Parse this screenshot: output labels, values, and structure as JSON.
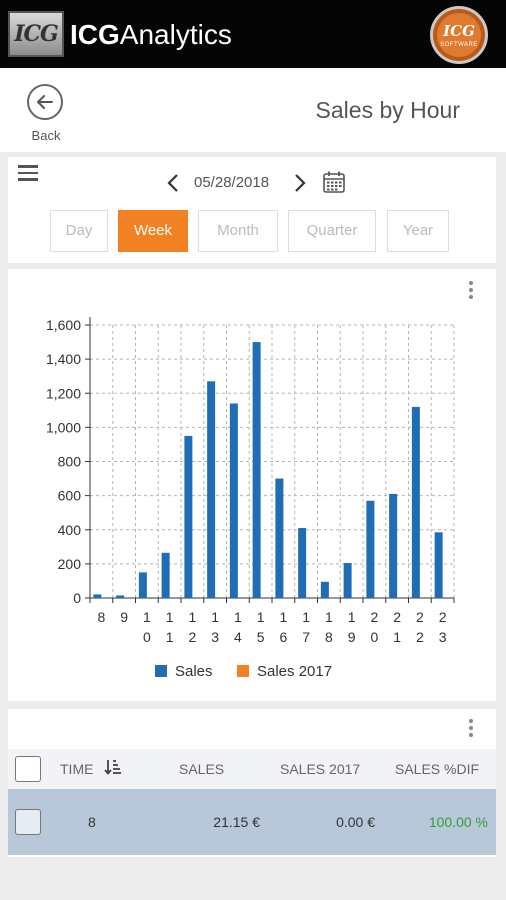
{
  "app": {
    "logo_text": "ICG",
    "brand_bold": "ICG",
    "brand_rest": "Analytics",
    "user_badge_top": "ICG",
    "user_badge_bottom": "SOFTWARE"
  },
  "header": {
    "back_label": "Back",
    "title": "Sales by Hour"
  },
  "nav": {
    "date": "05/28/2018",
    "periods": [
      "Day",
      "Week",
      "Month",
      "Quarter",
      "Year"
    ],
    "active_period": "Week"
  },
  "chart_data": {
    "type": "bar",
    "categories": [
      "8",
      "9",
      "10",
      "11",
      "12",
      "13",
      "14",
      "15",
      "16",
      "17",
      "18",
      "19",
      "20",
      "21",
      "22",
      "23"
    ],
    "series": [
      {
        "name": "Sales",
        "color": "#1f6db5",
        "values": [
          21.15,
          15,
          150,
          265,
          950,
          1270,
          1140,
          1500,
          700,
          410,
          95,
          205,
          570,
          610,
          1120,
          385
        ]
      },
      {
        "name": "Sales 2017",
        "color": "#f18122",
        "values": [
          0,
          0,
          0,
          0,
          0,
          0,
          0,
          0,
          0,
          0,
          0,
          0,
          0,
          0,
          0,
          0
        ]
      }
    ],
    "yticks": [
      "0",
      "200",
      "400",
      "600",
      "800",
      "1,000",
      "1,200",
      "1,400",
      "1,600"
    ],
    "ylim": [
      0,
      1600
    ],
    "grid": true,
    "legend": "bottom"
  },
  "table": {
    "headers": {
      "time": "TIME",
      "sales": "SALES",
      "sales_2017": "SALES 2017",
      "sales_dif": "SALES %DIF"
    },
    "rows": [
      {
        "time": "8",
        "sales": "21.15 €",
        "sales_2017": "0.00 €",
        "sales_dif": "100.00 %"
      }
    ],
    "dif_color": "#2e9e3a"
  }
}
